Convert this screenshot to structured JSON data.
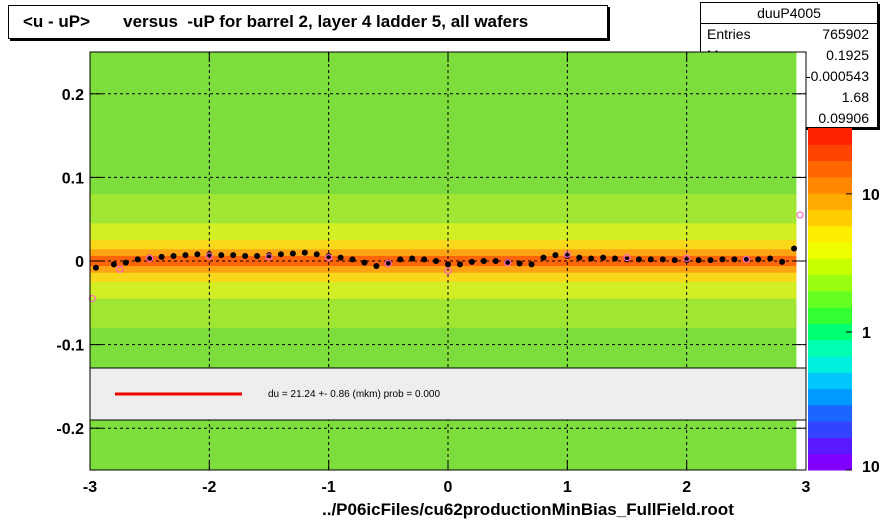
{
  "title": "<u - uP>       versus  -uP for barrel 2, layer 4 ladder 5, all wafers",
  "stats": {
    "name": "duuP4005",
    "rows": [
      {
        "key": "Entries",
        "value": "765902"
      },
      {
        "key": "Mean x",
        "value": "0.1925"
      },
      {
        "key": "Mean y",
        "value": "-0.000543"
      },
      {
        "key": "RMS x",
        "value": "1.68"
      },
      {
        "key": "RMS y",
        "value": "0.09906"
      }
    ]
  },
  "legend": {
    "fit_text": "du =   21.24 +-  0.86 (mkm) prob = 0.000",
    "line_color": "#ee0000"
  },
  "footer": "../P06icFiles/cu62productionMinBias_FullField.root",
  "colors": {
    "marker_black": "#000000",
    "marker_pink": "#ff66cc",
    "frame": "#000000"
  },
  "chart_data": {
    "type": "heatmap",
    "xlim": [
      -3,
      3
    ],
    "ylim": [
      -0.25,
      0.25
    ],
    "x_ticks": [
      "-3",
      "-2",
      "-1",
      "0",
      "1",
      "2",
      "3"
    ],
    "y_ticks": [
      "-0.2",
      "-0.1",
      "0",
      "0.1",
      "0.2"
    ],
    "z_scale": "log",
    "z_ticks": [
      "10",
      "1",
      "10"
    ],
    "z_tick_values": [
      10,
      1,
      0.1
    ],
    "grid": true,
    "profile_series": [
      {
        "style": "black-dots",
        "x": [
          -2.95,
          -2.8,
          -2.7,
          -2.6,
          -2.5,
          -2.4,
          -2.3,
          -2.2,
          -2.1,
          -2.0,
          -1.9,
          -1.8,
          -1.7,
          -1.6,
          -1.5,
          -1.4,
          -1.3,
          -1.2,
          -1.1,
          -1.0,
          -0.9,
          -0.8,
          -0.7,
          -0.6,
          -0.5,
          -0.4,
          -0.3,
          -0.2,
          -0.1,
          0.0,
          0.1,
          0.2,
          0.3,
          0.4,
          0.5,
          0.6,
          0.7,
          0.8,
          0.9,
          1.0,
          1.1,
          1.2,
          1.3,
          1.4,
          1.5,
          1.6,
          1.7,
          1.8,
          1.9,
          2.0,
          2.1,
          2.2,
          2.3,
          2.4,
          2.5,
          2.6,
          2.7,
          2.8,
          2.9
        ],
        "y": [
          -0.008,
          -0.004,
          -0.002,
          0.002,
          0.004,
          0.005,
          0.006,
          0.007,
          0.008,
          0.008,
          0.007,
          0.007,
          0.006,
          0.006,
          0.007,
          0.008,
          0.009,
          0.01,
          0.008,
          0.006,
          0.004,
          0.002,
          -0.002,
          -0.006,
          -0.002,
          0.002,
          0.003,
          0.002,
          0.0,
          -0.004,
          -0.004,
          -0.001,
          0.0,
          0.0,
          -0.001,
          -0.003,
          -0.004,
          0.004,
          0.007,
          0.006,
          0.004,
          0.003,
          0.004,
          0.003,
          0.002,
          0.002,
          0.002,
          0.002,
          0.001,
          0.001,
          0.001,
          0.001,
          0.002,
          0.002,
          0.002,
          0.002,
          0.003,
          -0.001,
          0.015
        ]
      },
      {
        "style": "pink-circles",
        "x": [
          -2.98,
          -2.75,
          -2.5,
          -2.0,
          -1.5,
          -1.0,
          -0.5,
          0.0,
          0.5,
          1.0,
          1.5,
          2.0,
          2.5,
          2.95
        ],
        "y": [
          -0.045,
          -0.01,
          0.003,
          0.006,
          0.005,
          0.004,
          -0.003,
          -0.012,
          -0.002,
          0.008,
          0.004,
          0.003,
          0.002,
          0.055
        ]
      }
    ]
  }
}
